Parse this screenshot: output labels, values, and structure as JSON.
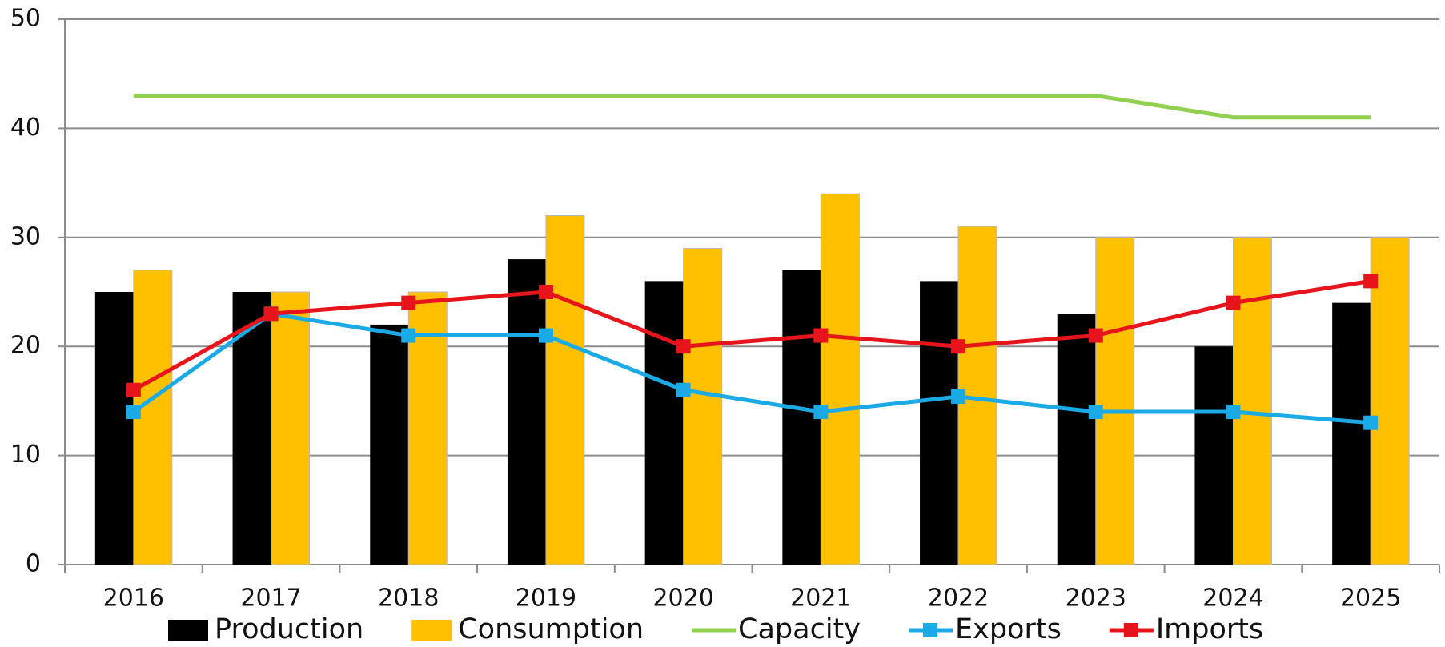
{
  "chart_data": {
    "type": "bar",
    "categories": [
      "2016",
      "2017",
      "2018",
      "2019",
      "2020",
      "2021",
      "2022",
      "2023",
      "2024",
      "2025"
    ],
    "series": [
      {
        "name": "Production",
        "type": "bar",
        "color": "#000000",
        "values": [
          25,
          25,
          22,
          28,
          26,
          27,
          26,
          23,
          20,
          24
        ]
      },
      {
        "name": "Consumption",
        "type": "bar",
        "color": "#ffc000",
        "values": [
          27,
          25,
          25,
          32,
          29,
          34,
          31,
          30,
          30,
          30
        ]
      },
      {
        "name": "Capacity",
        "type": "line",
        "color": "#92d050",
        "values": [
          43,
          43,
          43,
          43,
          43,
          43,
          43,
          43,
          41,
          41
        ]
      },
      {
        "name": "Exports",
        "type": "line",
        "color": "#1aaae6",
        "marker": "square",
        "values": [
          14,
          23,
          21,
          21,
          16,
          14,
          15.4,
          14,
          14,
          13
        ]
      },
      {
        "name": "Imports",
        "type": "line",
        "color": "#e8141c",
        "marker": "square",
        "values": [
          16,
          23,
          24,
          25,
          20,
          21,
          20,
          21,
          24,
          26
        ]
      }
    ],
    "ylim": [
      0,
      50
    ],
    "yticks": [
      0,
      10,
      20,
      30,
      40,
      50
    ],
    "grid": true,
    "legend": "bottom"
  }
}
